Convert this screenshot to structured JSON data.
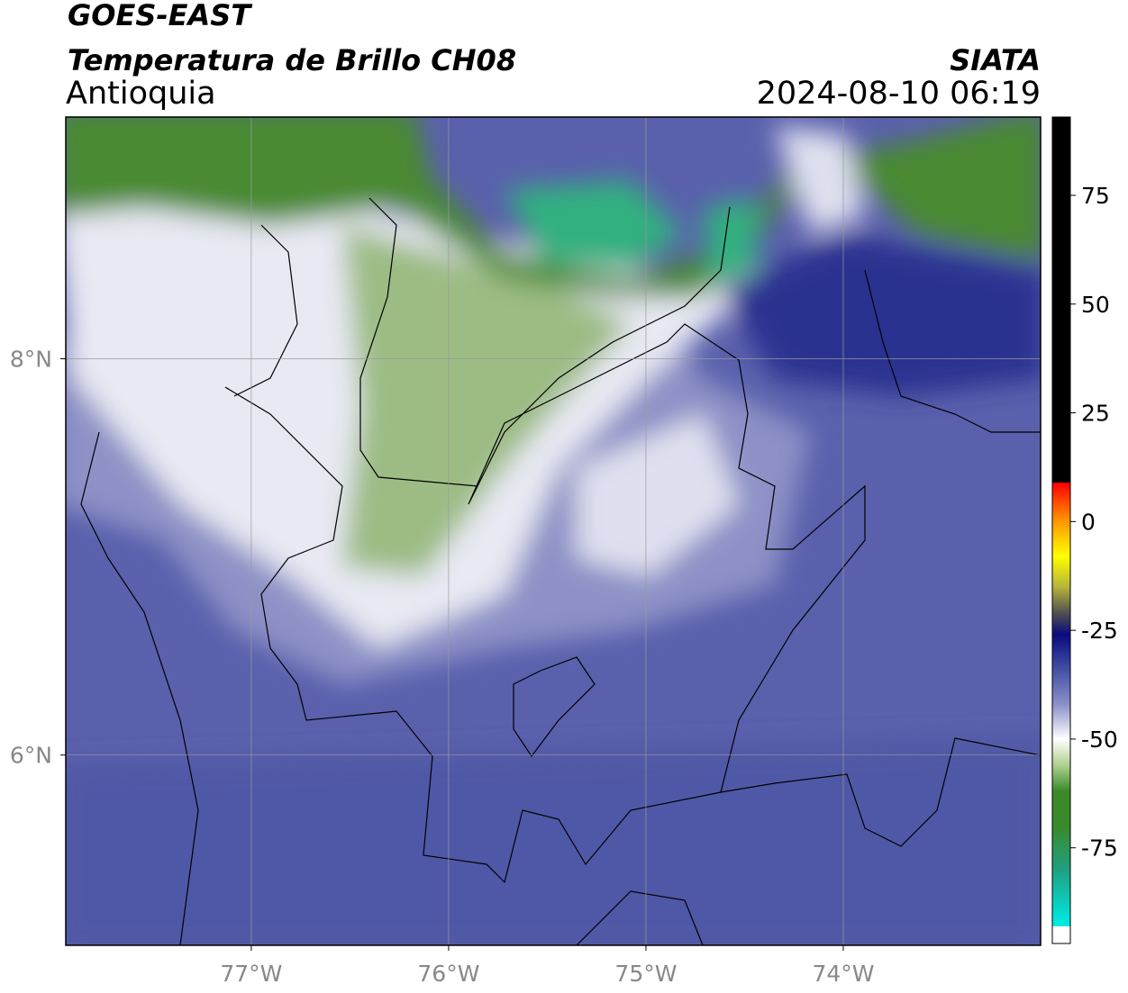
{
  "header": {
    "title": "GOES-EAST",
    "subtitle": "Temperatura de Brillo CH08",
    "region": "Antioquia",
    "source": "SIATA",
    "datetime": "2024-08-10 06:19"
  },
  "map": {
    "lonlim": [
      -77.94,
      -73.0
    ],
    "latlim": [
      5.04,
      9.22
    ],
    "grid": true,
    "grid_color": "#9a9a9a",
    "xticks": [
      {
        "value": -77,
        "label": "77°W"
      },
      {
        "value": -76,
        "label": "76°W"
      },
      {
        "value": -75,
        "label": "75°W"
      },
      {
        "value": -74,
        "label": "74°W"
      }
    ],
    "yticks": [
      {
        "value": 8,
        "label": "8°N"
      },
      {
        "value": 6,
        "label": "6°N"
      }
    ]
  },
  "colorbar": {
    "range": [
      -97,
      93
    ],
    "ticks": [
      75,
      50,
      25,
      0,
      -25,
      -50,
      -75
    ],
    "stops": [
      {
        "value": 93,
        "color": "#000000"
      },
      {
        "value": 9,
        "color": "#000000"
      },
      {
        "value": 8.9,
        "color": "#ff0000"
      },
      {
        "value": 0,
        "color": "#ff9900"
      },
      {
        "value": -8,
        "color": "#ffff00"
      },
      {
        "value": -15,
        "color": "#b5b53a"
      },
      {
        "value": -21,
        "color": "#505050"
      },
      {
        "value": -26,
        "color": "#0a0a80"
      },
      {
        "value": -33,
        "color": "#3a48a0"
      },
      {
        "value": -42,
        "color": "#8a90c8"
      },
      {
        "value": -50,
        "color": "#ffffff"
      },
      {
        "value": -56,
        "color": "#b0d090"
      },
      {
        "value": -62,
        "color": "#3a8a2a"
      },
      {
        "value": -70,
        "color": "#3a8a2a"
      },
      {
        "value": -80,
        "color": "#20a080"
      },
      {
        "value": -92,
        "color": "#00e8e0"
      },
      {
        "value": -93,
        "color": "#00e8e0"
      },
      {
        "value": -93.1,
        "color": "#ffffff"
      },
      {
        "value": -97,
        "color": "#ffffff"
      }
    ]
  }
}
